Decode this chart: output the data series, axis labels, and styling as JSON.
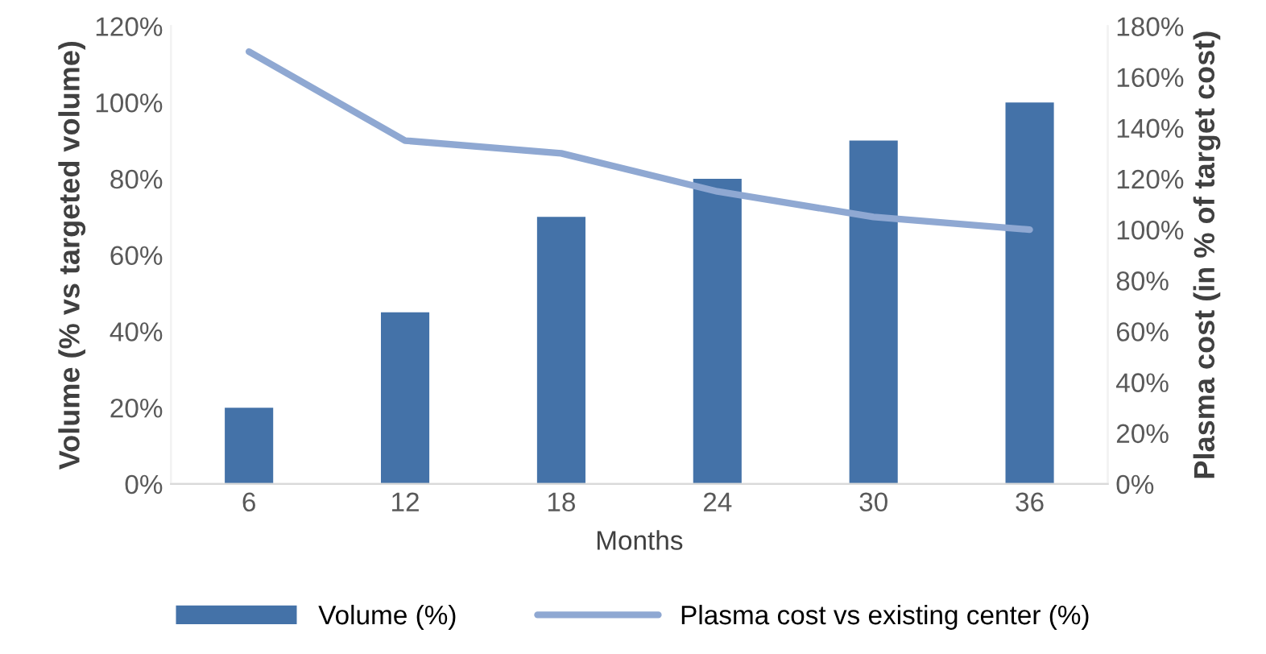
{
  "chart_data": {
    "type": "bar",
    "categories": [
      "6",
      "12",
      "18",
      "24",
      "30",
      "36"
    ],
    "xlabel": "Months",
    "ylabel": "Volume (% vs targeted volume)",
    "y2label": "Plasma cost (in % of target cost)",
    "series": [
      {
        "name": "Volume (%)",
        "color": "#4472a8",
        "values": [
          20,
          45,
          70,
          80,
          90,
          100
        ]
      },
      {
        "name": "Plasma cost vs existing center (%)",
        "type": "line",
        "axis": "y2",
        "color": "#8fa8d2",
        "values": [
          170,
          135,
          130,
          115,
          105,
          100
        ]
      }
    ],
    "ylim": [
      0,
      120
    ],
    "yticks": [
      {
        "value": 0,
        "label": "0%"
      },
      {
        "value": 20,
        "label": "20%"
      },
      {
        "value": 40,
        "label": "40%"
      },
      {
        "value": 60,
        "label": "60%"
      },
      {
        "value": 80,
        "label": "80%"
      },
      {
        "value": 100,
        "label": "100%"
      },
      {
        "value": 120,
        "label": "120%"
      }
    ],
    "y2lim": [
      0,
      180
    ],
    "y2ticks": [
      {
        "value": 0,
        "label": "0%"
      },
      {
        "value": 20,
        "label": "20%"
      },
      {
        "value": 40,
        "label": "40%"
      },
      {
        "value": 60,
        "label": "60%"
      },
      {
        "value": 80,
        "label": "80%"
      },
      {
        "value": 100,
        "label": "100%"
      },
      {
        "value": 120,
        "label": "120%"
      },
      {
        "value": 140,
        "label": "140%"
      },
      {
        "value": 160,
        "label": "160%"
      },
      {
        "value": 180,
        "label": "180%"
      }
    ],
    "grid": false,
    "legend": "bottom",
    "marker": "none"
  }
}
